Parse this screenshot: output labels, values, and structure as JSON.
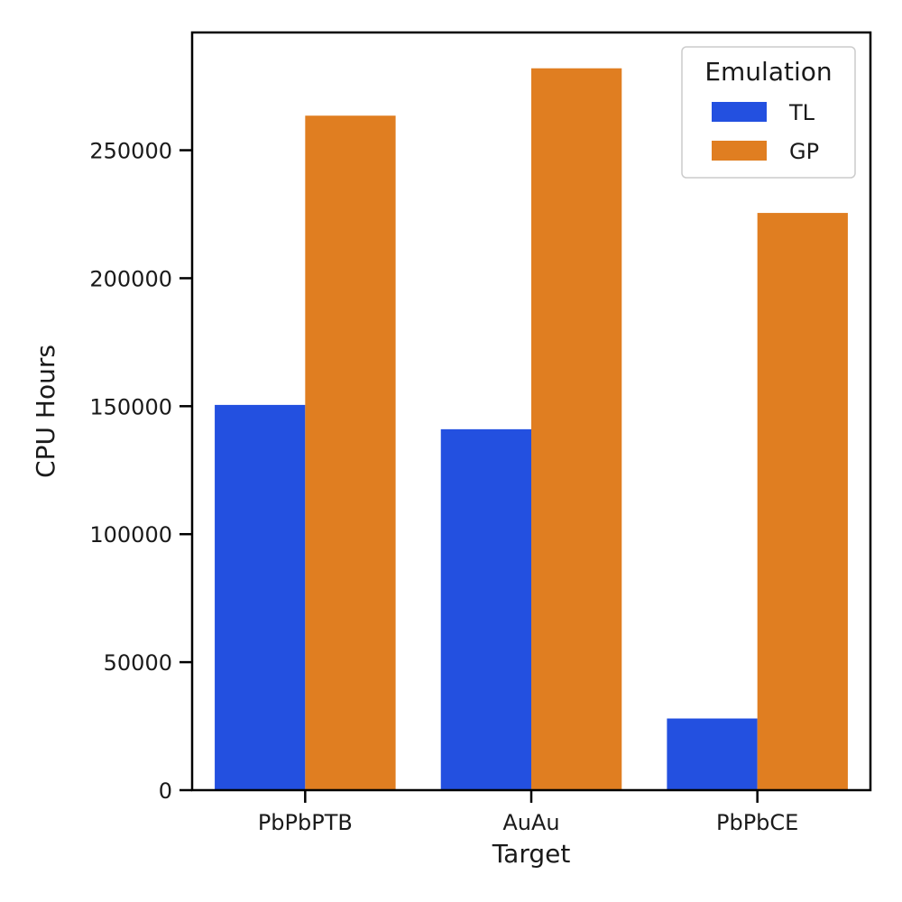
{
  "chart_data": {
    "type": "bar",
    "title": "",
    "xlabel": "Target",
    "ylabel": "CPU Hours",
    "categories": [
      "PbPbPTB",
      "AuAu",
      "PbPbCE"
    ],
    "series": [
      {
        "name": "TL",
        "values": [
          150500,
          141000,
          28000
        ],
        "color": "#2350e0"
      },
      {
        "name": "GP",
        "values": [
          263500,
          282000,
          225500
        ],
        "color": "#e07e21"
      }
    ],
    "ylim": [
      0,
      296000
    ],
    "yticks": [
      0,
      50000,
      100000,
      150000,
      200000,
      250000
    ],
    "ytick_labels": [
      "0",
      "50000",
      "100000",
      "150000",
      "200000",
      "250000"
    ],
    "grid": false,
    "legend": {
      "title": "Emulation",
      "placement": "top-right"
    }
  }
}
